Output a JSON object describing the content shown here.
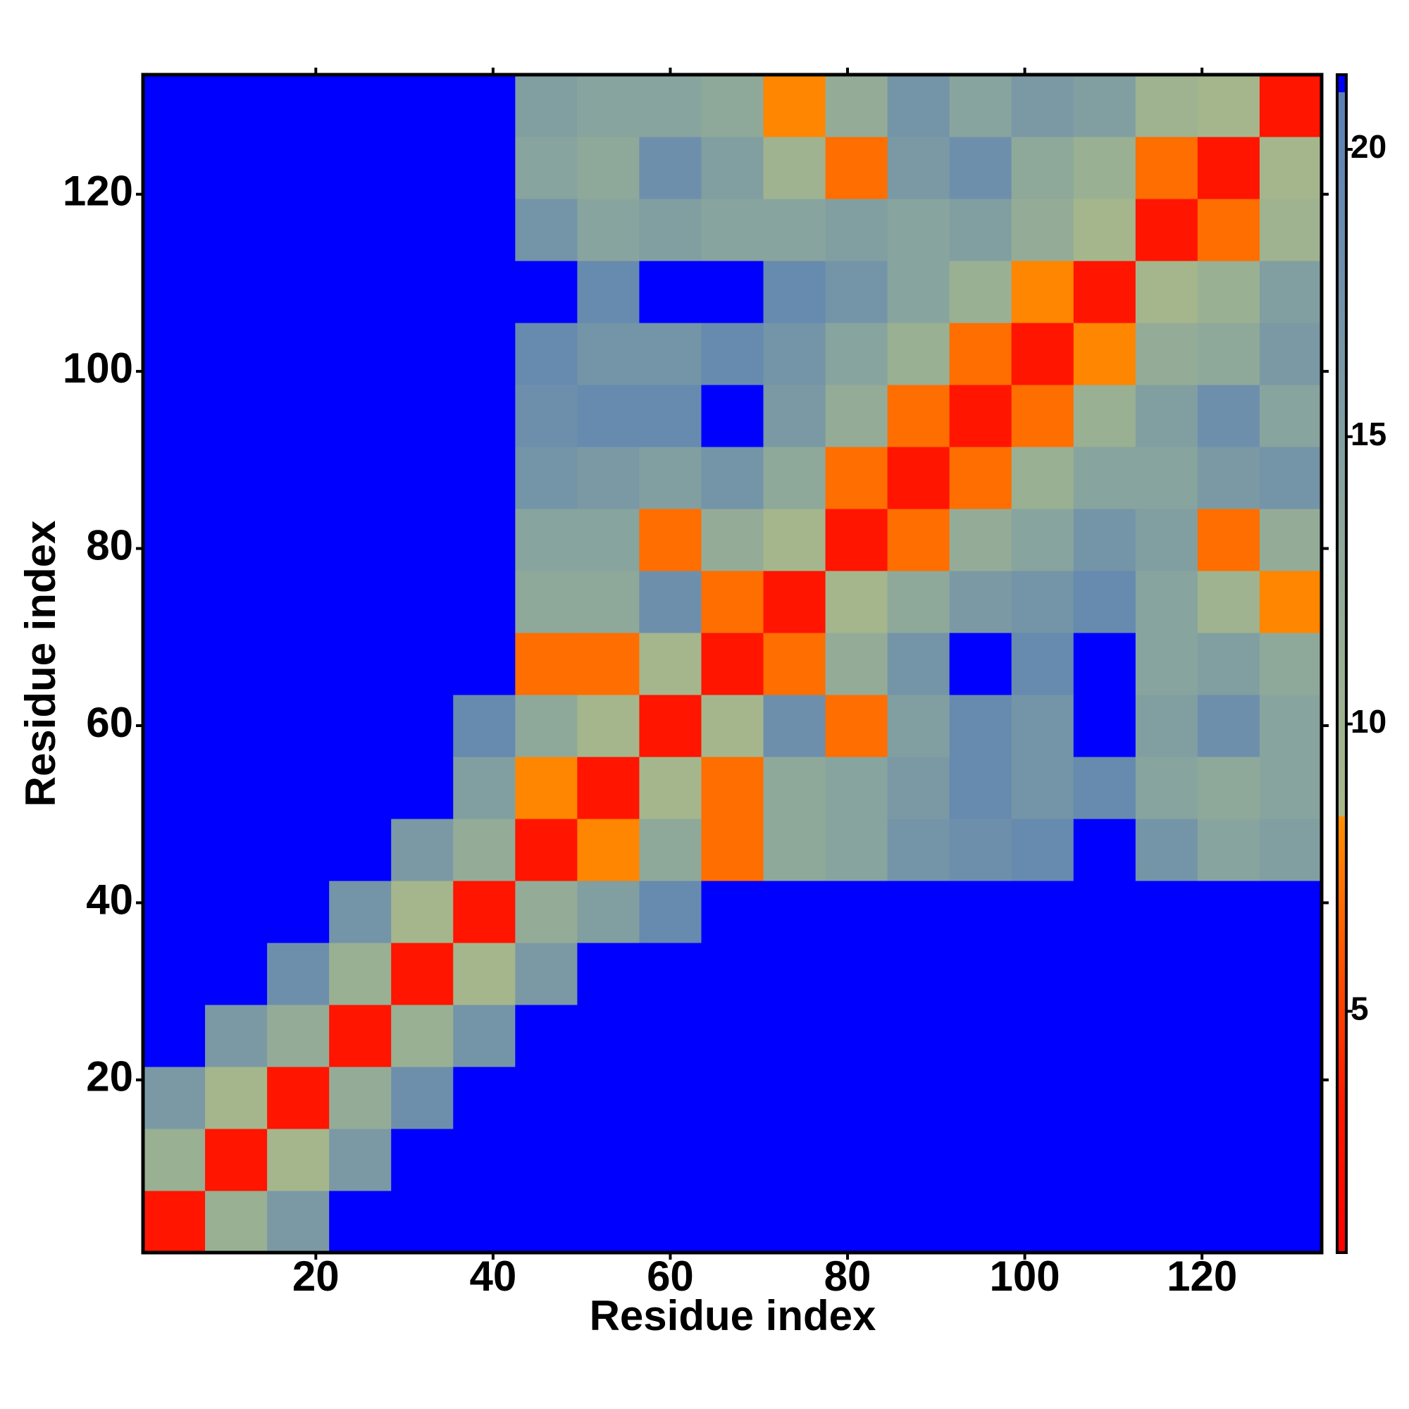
{
  "chart_data": {
    "type": "heatmap",
    "xlabel": "Residue index",
    "ylabel": "Residue index",
    "xbins": [
      0.5,
      7.5,
      14.5,
      21.5,
      28.5,
      35.5,
      42.5,
      49.5,
      56.5,
      63.5,
      70.5,
      77.5,
      84.5,
      91.5,
      98.5,
      105.5,
      112.5,
      119.5,
      126.5,
      133.5
    ],
    "ybins": [
      0.5,
      7.5,
      14.5,
      21.5,
      28.5,
      35.5,
      42.5,
      49.5,
      56.5,
      63.5,
      70.5,
      77.5,
      84.5,
      91.5,
      98.5,
      105.5,
      112.5,
      119.5,
      126.5,
      133.5
    ],
    "xlim": [
      0.5,
      133.5
    ],
    "ylim": [
      0.5,
      133.5
    ],
    "xticks": [
      20,
      40,
      60,
      80,
      100,
      120
    ],
    "yticks": [
      20,
      40,
      60,
      80,
      100,
      120
    ],
    "clim": [
      0.8,
      21.3
    ],
    "cticks": [
      5,
      10,
      15,
      20
    ],
    "colormap": [
      {
        "value": 0.8,
        "color": "#ff0000"
      },
      {
        "value": 3.5,
        "color": "#ff1a00"
      },
      {
        "value": 8.4,
        "color": "#ff9000"
      },
      {
        "value": 8.4,
        "color": "#a8b88a"
      },
      {
        "value": 13,
        "color": "#8ea99a"
      },
      {
        "value": 21,
        "color": "#5a7fb6"
      },
      {
        "value": 21,
        "color": "#0000ff"
      },
      {
        "value": 21.3,
        "color": "#0000ff"
      }
    ],
    "values": [
      [
        3,
        11,
        16,
        21.3,
        21.3,
        21.3,
        21.3,
        21.3,
        21.3,
        21.3,
        21.3,
        21.3,
        21.3,
        21.3,
        21.3,
        21.3,
        21.3,
        21.3,
        21.3
      ],
      [
        11,
        3,
        9,
        16,
        21.3,
        21.3,
        21.3,
        21.3,
        21.3,
        21.3,
        21.3,
        21.3,
        21.3,
        21.3,
        21.3,
        21.3,
        21.3,
        21.3,
        21.3
      ],
      [
        16,
        9,
        3,
        12,
        18,
        21.3,
        21.3,
        21.3,
        21.3,
        21.3,
        21.3,
        21.3,
        21.3,
        21.3,
        21.3,
        21.3,
        21.3,
        21.3,
        21.3
      ],
      [
        21.3,
        16,
        12,
        3,
        11,
        17,
        21.3,
        21.3,
        21.3,
        21.3,
        21.3,
        21.3,
        21.3,
        21.3,
        21.3,
        21.3,
        21.3,
        21.3,
        21.3
      ],
      [
        21.3,
        21.3,
        18,
        11,
        3,
        9,
        16,
        21.3,
        21.3,
        21.3,
        21.3,
        21.3,
        21.3,
        21.3,
        21.3,
        21.3,
        21.3,
        21.3,
        21.3
      ],
      [
        21.3,
        21.3,
        21.3,
        17,
        9,
        3,
        12,
        15,
        19,
        21.3,
        21.3,
        21.3,
        21.3,
        21.3,
        21.3,
        21.3,
        21.3,
        21.3,
        21.3
      ],
      [
        21.3,
        21.3,
        21.3,
        21.3,
        16,
        12,
        3,
        8,
        13,
        7,
        13,
        14,
        17,
        18,
        19,
        21.3,
        17,
        14,
        15
      ],
      [
        21.3,
        21.3,
        21.3,
        21.3,
        21.3,
        15,
        8,
        3,
        9,
        7,
        13,
        14,
        16,
        19,
        17,
        19,
        14,
        13,
        14
      ],
      [
        21.3,
        21.3,
        21.3,
        21.3,
        21.3,
        19,
        13,
        9,
        3,
        9,
        18,
        7,
        15,
        19,
        17,
        21.3,
        15,
        18,
        14
      ],
      [
        21.3,
        21.3,
        21.3,
        21.3,
        21.3,
        21.3,
        7,
        7,
        9,
        3,
        7,
        12,
        17,
        21.3,
        19,
        21.3,
        14,
        15,
        13
      ],
      [
        21.3,
        21.3,
        21.3,
        21.3,
        21.3,
        21.3,
        13,
        13,
        18,
        7,
        3,
        9,
        13,
        16,
        17,
        19,
        14,
        10,
        8
      ],
      [
        21.3,
        21.3,
        21.3,
        21.3,
        21.3,
        21.3,
        14,
        14,
        7,
        12,
        9,
        3,
        7,
        12,
        14,
        17,
        15,
        7,
        12
      ],
      [
        21.3,
        21.3,
        21.3,
        21.3,
        21.3,
        21.3,
        17,
        16,
        15,
        17,
        13,
        7,
        3,
        7,
        11,
        14,
        14,
        16,
        17
      ],
      [
        21.3,
        21.3,
        21.3,
        21.3,
        21.3,
        21.3,
        18,
        19,
        19,
        21.3,
        16,
        12,
        7,
        3,
        7,
        11,
        15,
        18,
        14
      ],
      [
        21.3,
        21.3,
        21.3,
        21.3,
        21.3,
        21.3,
        19,
        17,
        17,
        19,
        17,
        14,
        11,
        7,
        3,
        8,
        12,
        13,
        16
      ],
      [
        21.3,
        21.3,
        21.3,
        21.3,
        21.3,
        21.3,
        21.3,
        19,
        21.3,
        21.3,
        19,
        17,
        14,
        11,
        8,
        3,
        9,
        11,
        15
      ],
      [
        21.3,
        21.3,
        21.3,
        21.3,
        21.3,
        21.3,
        17,
        14,
        15,
        14,
        14,
        15,
        14,
        15,
        12,
        9,
        3,
        7,
        10
      ],
      [
        21.3,
        21.3,
        21.3,
        21.3,
        21.3,
        21.3,
        14,
        13,
        18,
        15,
        10,
        7,
        16,
        18,
        13,
        11,
        7,
        3,
        9
      ],
      [
        21.3,
        21.3,
        21.3,
        21.3,
        21.3,
        21.3,
        15,
        14,
        14,
        13,
        8,
        12,
        17,
        14,
        16,
        15,
        10,
        9,
        3
      ]
    ]
  }
}
